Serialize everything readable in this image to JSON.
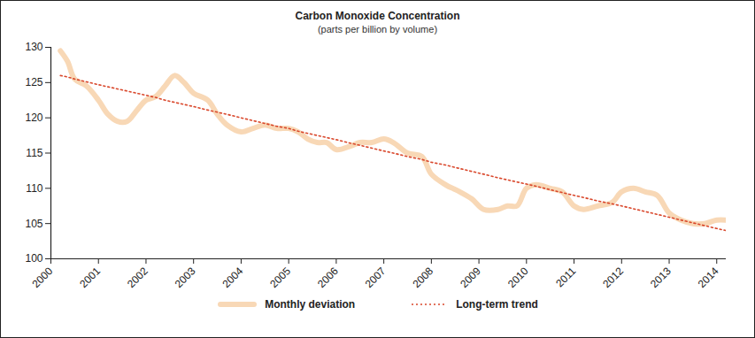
{
  "chart_data": {
    "type": "line",
    "title": "Carbon Monoxide Concentration",
    "subtitle": "(parts per billion by volume)",
    "x": [
      2000.2,
      2000.35,
      2000.5,
      2000.75,
      2001.0,
      2001.2,
      2001.4,
      2001.6,
      2001.8,
      2002.0,
      2002.2,
      2002.4,
      2002.6,
      2002.8,
      2003.0,
      2003.3,
      2003.5,
      2003.7,
      2004.0,
      2004.25,
      2004.5,
      2004.75,
      2005.0,
      2005.2,
      2005.4,
      2005.6,
      2005.8,
      2006.0,
      2006.3,
      2006.5,
      2006.75,
      2007.0,
      2007.2,
      2007.5,
      2007.8,
      2008.0,
      2008.3,
      2008.6,
      2008.85,
      2009.1,
      2009.4,
      2009.6,
      2009.8,
      2010.0,
      2010.2,
      2010.5,
      2010.75,
      2011.0,
      2011.2,
      2011.5,
      2011.8,
      2012.0,
      2012.25,
      2012.5,
      2012.75,
      2013.0,
      2013.25,
      2013.5,
      2013.75,
      2014.0,
      2014.2
    ],
    "series": [
      {
        "name": "Monthly deviation",
        "color": "#f8d8b6",
        "line_style": "solid",
        "marker": "none",
        "values": [
          129.5,
          128,
          125.5,
          124.5,
          122.5,
          120.5,
          119.5,
          119.5,
          121,
          122.5,
          123,
          124.5,
          126,
          125,
          123.5,
          122.5,
          120.5,
          119,
          118,
          118.5,
          119,
          118.5,
          118.5,
          118,
          117,
          116.5,
          116.5,
          115.5,
          116,
          116.5,
          116.5,
          117,
          116.5,
          115,
          114.5,
          112,
          110.5,
          109.5,
          108.5,
          107,
          107,
          107.5,
          107.5,
          110,
          110.5,
          110,
          109.5,
          107.5,
          107,
          107.5,
          108,
          109.5,
          110,
          109.5,
          109,
          106.5,
          105.5,
          105,
          105,
          105.5,
          105.5
        ]
      },
      {
        "name": "Long-term trend",
        "color": "#d9472b",
        "line_style": "dotted",
        "marker": "none",
        "values": [
          126.0,
          125.8,
          125.5,
          125.1,
          124.7,
          124.4,
          124.1,
          123.8,
          123.5,
          123.2,
          122.9,
          122.5,
          122.2,
          121.9,
          121.6,
          121.1,
          120.8,
          120.5,
          120.0,
          119.6,
          119.2,
          118.8,
          118.5,
          118.1,
          117.8,
          117.5,
          117.2,
          116.9,
          116.4,
          116.1,
          115.7,
          115.3,
          115.0,
          114.5,
          114.1,
          113.7,
          113.3,
          112.8,
          112.4,
          112.0,
          111.5,
          111.2,
          110.9,
          110.6,
          110.3,
          109.8,
          109.4,
          109.0,
          108.7,
          108.2,
          107.8,
          107.5,
          107.1,
          106.7,
          106.3,
          105.9,
          105.5,
          105.1,
          104.7,
          104.3,
          104.0
        ]
      }
    ],
    "xlim": [
      2000,
      2014.2
    ],
    "xticks": [
      2000,
      2001,
      2002,
      2003,
      2004,
      2005,
      2006,
      2007,
      2008,
      2009,
      2010,
      2011,
      2012,
      2013,
      2014
    ],
    "ylim": [
      100,
      130
    ],
    "yticks": [
      100,
      105,
      110,
      115,
      120,
      125,
      130
    ],
    "grid": false,
    "legend": "bottom"
  }
}
